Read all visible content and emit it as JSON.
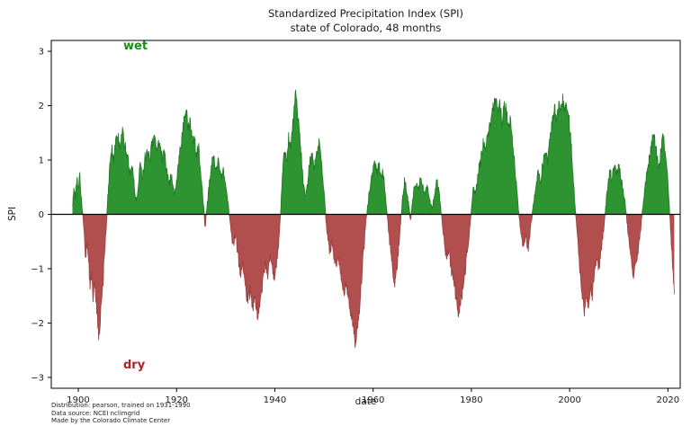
{
  "figure": {
    "title_line1": "Standardized Precipitation Index (SPI)",
    "title_line2": "state of Colorado, 48 months",
    "xlabel": "date",
    "ylabel": "SPI",
    "wet_label": "wet",
    "dry_label": "dry",
    "footer_line1": "Distribution: pearson, trained on 1931-1990",
    "footer_line2": "Data source: NCEI nclimgrid",
    "footer_line3": "Made by the Colorado Climate Center",
    "colors": {
      "wet_fill": "#2e9331",
      "wet_edge": "#1f7a23",
      "dry_fill": "#b14f4f",
      "dry_edge": "#9c3f3f",
      "wet_text": "#1a8c1a",
      "dry_text": "#b22222",
      "axis": "#000000"
    }
  },
  "chart_data": {
    "type": "area",
    "title": "Standardized Precipitation Index (SPI) — state of Colorado, 48 months",
    "xlabel": "date",
    "ylabel": "SPI",
    "xlim": [
      1894.5,
      2022.5
    ],
    "ylim": [
      -3.2,
      3.2
    ],
    "grid": false,
    "legend": "none",
    "zero_line": true,
    "noise": 0.12,
    "x_ticks": [
      {
        "v": 1900,
        "label": "1900"
      },
      {
        "v": 1920,
        "label": "1920"
      },
      {
        "v": 1940,
        "label": "1940"
      },
      {
        "v": 1960,
        "label": "1960"
      },
      {
        "v": 1980,
        "label": "1980"
      },
      {
        "v": 2000,
        "label": "2000"
      },
      {
        "v": 2020,
        "label": "2020"
      }
    ],
    "y_ticks": [
      {
        "v": -3,
        "label": "−3"
      },
      {
        "v": -2,
        "label": "−2"
      },
      {
        "v": -1,
        "label": "−1"
      },
      {
        "v": 0,
        "label": "0"
      },
      {
        "v": 1,
        "label": "1"
      },
      {
        "v": 2,
        "label": "2"
      },
      {
        "v": 3,
        "label": "3"
      }
    ],
    "series": [
      {
        "name": "SPI (48 months)",
        "points": [
          [
            1898.8,
            0.1
          ],
          [
            1899.1,
            0.55
          ],
          [
            1899.4,
            0.3
          ],
          [
            1899.7,
            0.65
          ],
          [
            1900.0,
            0.45
          ],
          [
            1900.3,
            0.7
          ],
          [
            1900.6,
            0.3
          ],
          [
            1900.9,
            0.0
          ],
          [
            1901.2,
            -0.4
          ],
          [
            1901.5,
            -0.8
          ],
          [
            1901.8,
            -0.5
          ],
          [
            1902.1,
            -0.9
          ],
          [
            1902.4,
            -1.3
          ],
          [
            1902.7,
            -1.1
          ],
          [
            1903.0,
            -1.5
          ],
          [
            1903.3,
            -1.2
          ],
          [
            1903.6,
            -1.6
          ],
          [
            1903.9,
            -1.9
          ],
          [
            1904.2,
            -2.3
          ],
          [
            1904.5,
            -1.9
          ],
          [
            1904.8,
            -1.5
          ],
          [
            1905.1,
            -1.1
          ],
          [
            1905.4,
            -0.6
          ],
          [
            1905.7,
            -0.2
          ],
          [
            1906.0,
            0.3
          ],
          [
            1906.4,
            0.9
          ],
          [
            1906.8,
            1.2
          ],
          [
            1907.2,
            1.0
          ],
          [
            1907.6,
            1.4
          ],
          [
            1908.0,
            1.5
          ],
          [
            1908.5,
            1.2
          ],
          [
            1909.0,
            1.55
          ],
          [
            1909.5,
            1.3
          ],
          [
            1910.0,
            1.1
          ],
          [
            1910.5,
            0.7
          ],
          [
            1911.0,
            0.9
          ],
          [
            1911.4,
            0.5
          ],
          [
            1911.8,
            0.2
          ],
          [
            1912.2,
            0.55
          ],
          [
            1912.6,
            0.9
          ],
          [
            1913.0,
            0.7
          ],
          [
            1913.5,
            1.0
          ],
          [
            1914.0,
            1.2
          ],
          [
            1914.5,
            1.0
          ],
          [
            1915.0,
            1.3
          ],
          [
            1915.5,
            1.45
          ],
          [
            1916.0,
            1.2
          ],
          [
            1916.5,
            1.35
          ],
          [
            1917.0,
            1.0
          ],
          [
            1917.5,
            1.2
          ],
          [
            1918.0,
            0.8
          ],
          [
            1918.5,
            0.55
          ],
          [
            1919.0,
            0.75
          ],
          [
            1919.5,
            0.4
          ],
          [
            1920.0,
            0.6
          ],
          [
            1920.5,
            1.0
          ],
          [
            1921.0,
            1.4
          ],
          [
            1921.5,
            1.7
          ],
          [
            1922.0,
            1.9
          ],
          [
            1922.4,
            1.6
          ],
          [
            1922.8,
            1.75
          ],
          [
            1923.2,
            1.3
          ],
          [
            1923.6,
            1.45
          ],
          [
            1924.0,
            1.1
          ],
          [
            1924.5,
            1.25
          ],
          [
            1925.0,
            0.7
          ],
          [
            1925.4,
            0.3
          ],
          [
            1925.8,
            -0.25
          ],
          [
            1926.2,
            0.15
          ],
          [
            1926.6,
            0.5
          ],
          [
            1927.0,
            0.85
          ],
          [
            1927.5,
            1.05
          ],
          [
            1928.0,
            0.8
          ],
          [
            1928.5,
            1.0
          ],
          [
            1929.0,
            0.65
          ],
          [
            1929.5,
            0.85
          ],
          [
            1930.0,
            0.55
          ],
          [
            1930.5,
            0.2
          ],
          [
            1931.0,
            -0.2
          ],
          [
            1931.5,
            -0.6
          ],
          [
            1932.0,
            -0.35
          ],
          [
            1932.5,
            -0.75
          ],
          [
            1933.0,
            -1.1
          ],
          [
            1933.5,
            -0.9
          ],
          [
            1934.0,
            -1.35
          ],
          [
            1934.5,
            -1.6
          ],
          [
            1935.0,
            -1.4
          ],
          [
            1935.5,
            -1.7
          ],
          [
            1936.0,
            -1.55
          ],
          [
            1936.5,
            -1.85
          ],
          [
            1937.0,
            -1.6
          ],
          [
            1937.5,
            -1.3
          ],
          [
            1938.0,
            -0.95
          ],
          [
            1938.5,
            -1.15
          ],
          [
            1939.0,
            -0.75
          ],
          [
            1939.5,
            -1.0
          ],
          [
            1940.0,
            -1.2
          ],
          [
            1940.5,
            -0.8
          ],
          [
            1941.0,
            -0.25
          ],
          [
            1941.3,
            0.3
          ],
          [
            1941.6,
            0.8
          ],
          [
            1942.0,
            1.2
          ],
          [
            1942.4,
            1.0
          ],
          [
            1942.8,
            1.4
          ],
          [
            1943.2,
            1.25
          ],
          [
            1943.6,
            1.6
          ],
          [
            1944.0,
            2.0
          ],
          [
            1944.3,
            2.25
          ],
          [
            1944.6,
            1.9
          ],
          [
            1945.0,
            1.5
          ],
          [
            1945.4,
            1.05
          ],
          [
            1945.8,
            0.6
          ],
          [
            1946.2,
            0.3
          ],
          [
            1946.6,
            0.55
          ],
          [
            1947.0,
            0.9
          ],
          [
            1947.5,
            1.1
          ],
          [
            1948.0,
            0.85
          ],
          [
            1948.5,
            1.15
          ],
          [
            1949.0,
            1.3
          ],
          [
            1949.5,
            0.95
          ],
          [
            1950.0,
            0.45
          ],
          [
            1950.4,
            -0.1
          ],
          [
            1950.8,
            -0.45
          ],
          [
            1951.2,
            -0.7
          ],
          [
            1951.6,
            -0.5
          ],
          [
            1952.0,
            -0.75
          ],
          [
            1952.5,
            -1.0
          ],
          [
            1953.0,
            -0.8
          ],
          [
            1953.5,
            -1.15
          ],
          [
            1954.0,
            -1.45
          ],
          [
            1954.5,
            -1.25
          ],
          [
            1955.0,
            -1.55
          ],
          [
            1955.5,
            -1.8
          ],
          [
            1956.0,
            -2.05
          ],
          [
            1956.4,
            -2.45
          ],
          [
            1956.8,
            -2.1
          ],
          [
            1957.2,
            -1.8
          ],
          [
            1957.6,
            -1.3
          ],
          [
            1958.0,
            -0.75
          ],
          [
            1958.4,
            -0.3
          ],
          [
            1958.8,
            0.1
          ],
          [
            1959.2,
            0.4
          ],
          [
            1959.6,
            0.6
          ],
          [
            1960.0,
            0.8
          ],
          [
            1960.4,
            0.95
          ],
          [
            1960.8,
            0.75
          ],
          [
            1961.2,
            0.9
          ],
          [
            1961.6,
            0.65
          ],
          [
            1962.0,
            0.8
          ],
          [
            1962.4,
            0.45
          ],
          [
            1962.8,
            0.1
          ],
          [
            1963.2,
            -0.35
          ],
          [
            1963.6,
            -0.7
          ],
          [
            1964.0,
            -1.0
          ],
          [
            1964.4,
            -1.3
          ],
          [
            1964.8,
            -1.05
          ],
          [
            1965.2,
            -0.6
          ],
          [
            1965.6,
            -0.15
          ],
          [
            1966.0,
            0.3
          ],
          [
            1966.4,
            0.6
          ],
          [
            1966.8,
            0.45
          ],
          [
            1967.2,
            0.2
          ],
          [
            1967.6,
            -0.1
          ],
          [
            1968.0,
            0.2
          ],
          [
            1968.4,
            0.5
          ],
          [
            1968.8,
            0.6
          ],
          [
            1969.2,
            0.45
          ],
          [
            1969.6,
            0.65
          ],
          [
            1970.0,
            0.55
          ],
          [
            1970.5,
            0.35
          ],
          [
            1971.0,
            0.55
          ],
          [
            1971.5,
            0.25
          ],
          [
            1972.0,
            0.1
          ],
          [
            1972.5,
            0.4
          ],
          [
            1973.0,
            0.6
          ],
          [
            1973.5,
            0.35
          ],
          [
            1974.0,
            -0.1
          ],
          [
            1974.5,
            -0.5
          ],
          [
            1975.0,
            -0.85
          ],
          [
            1975.4,
            -0.65
          ],
          [
            1975.8,
            -0.95
          ],
          [
            1976.2,
            -1.15
          ],
          [
            1976.6,
            -1.35
          ],
          [
            1977.0,
            -1.6
          ],
          [
            1977.4,
            -1.85
          ],
          [
            1977.8,
            -1.65
          ],
          [
            1978.2,
            -1.4
          ],
          [
            1978.6,
            -1.15
          ],
          [
            1979.0,
            -0.8
          ],
          [
            1979.5,
            -0.45
          ],
          [
            1980.0,
            0.1
          ],
          [
            1980.4,
            0.5
          ],
          [
            1980.8,
            0.35
          ],
          [
            1981.2,
            0.6
          ],
          [
            1981.6,
            0.85
          ],
          [
            1982.0,
            1.05
          ],
          [
            1982.4,
            1.3
          ],
          [
            1982.8,
            1.15
          ],
          [
            1983.2,
            1.4
          ],
          [
            1983.6,
            1.55
          ],
          [
            1984.0,
            1.75
          ],
          [
            1984.5,
            2.0
          ],
          [
            1985.0,
            2.1
          ],
          [
            1985.4,
            1.85
          ],
          [
            1985.8,
            2.05
          ],
          [
            1986.2,
            1.7
          ],
          [
            1986.6,
            1.95
          ],
          [
            1987.0,
            2.05
          ],
          [
            1987.5,
            1.6
          ],
          [
            1988.0,
            1.75
          ],
          [
            1988.5,
            1.2
          ],
          [
            1989.0,
            0.7
          ],
          [
            1989.5,
            0.2
          ],
          [
            1990.0,
            -0.3
          ],
          [
            1990.5,
            -0.6
          ],
          [
            1991.0,
            -0.4
          ],
          [
            1991.5,
            -0.7
          ],
          [
            1992.0,
            -0.3
          ],
          [
            1992.5,
            0.1
          ],
          [
            1993.0,
            0.4
          ],
          [
            1993.5,
            0.8
          ],
          [
            1994.0,
            0.6
          ],
          [
            1994.5,
            0.9
          ],
          [
            1995.0,
            1.2
          ],
          [
            1995.5,
            1.0
          ],
          [
            1996.0,
            1.4
          ],
          [
            1996.5,
            1.7
          ],
          [
            1997.0,
            1.95
          ],
          [
            1997.4,
            1.75
          ],
          [
            1997.8,
            2.05
          ],
          [
            1998.2,
            1.9
          ],
          [
            1998.6,
            2.1
          ],
          [
            1999.0,
            1.95
          ],
          [
            1999.4,
            2.05
          ],
          [
            1999.8,
            1.8
          ],
          [
            2000.2,
            1.4
          ],
          [
            2000.6,
            0.9
          ],
          [
            2001.0,
            0.3
          ],
          [
            2001.5,
            -0.3
          ],
          [
            2002.0,
            -0.9
          ],
          [
            2002.5,
            -1.4
          ],
          [
            2003.0,
            -1.8
          ],
          [
            2003.4,
            -1.5
          ],
          [
            2003.8,
            -1.7
          ],
          [
            2004.2,
            -1.3
          ],
          [
            2004.6,
            -1.5
          ],
          [
            2005.0,
            -1.1
          ],
          [
            2005.5,
            -0.8
          ],
          [
            2006.0,
            -1.0
          ],
          [
            2006.5,
            -0.6
          ],
          [
            2007.0,
            -0.2
          ],
          [
            2007.4,
            0.2
          ],
          [
            2007.8,
            0.6
          ],
          [
            2008.2,
            0.85
          ],
          [
            2008.6,
            0.65
          ],
          [
            2009.0,
            0.9
          ],
          [
            2009.5,
            0.75
          ],
          [
            2010.0,
            0.9
          ],
          [
            2010.5,
            0.65
          ],
          [
            2011.0,
            0.35
          ],
          [
            2011.5,
            0.05
          ],
          [
            2012.0,
            -0.45
          ],
          [
            2012.5,
            -0.85
          ],
          [
            2013.0,
            -1.1
          ],
          [
            2013.5,
            -0.95
          ],
          [
            2014.0,
            -0.6
          ],
          [
            2014.5,
            -0.25
          ],
          [
            2015.0,
            0.25
          ],
          [
            2015.5,
            0.6
          ],
          [
            2016.0,
            0.9
          ],
          [
            2016.5,
            1.15
          ],
          [
            2017.0,
            1.5
          ],
          [
            2017.4,
            1.3
          ],
          [
            2017.8,
            1.05
          ],
          [
            2018.2,
            0.9
          ],
          [
            2018.6,
            1.15
          ],
          [
            2019.0,
            1.5
          ],
          [
            2019.4,
            1.2
          ],
          [
            2019.8,
            0.8
          ],
          [
            2020.2,
            0.3
          ],
          [
            2020.6,
            -0.4
          ],
          [
            2021.0,
            -1.0
          ],
          [
            2021.3,
            -1.45
          ]
        ]
      }
    ]
  }
}
